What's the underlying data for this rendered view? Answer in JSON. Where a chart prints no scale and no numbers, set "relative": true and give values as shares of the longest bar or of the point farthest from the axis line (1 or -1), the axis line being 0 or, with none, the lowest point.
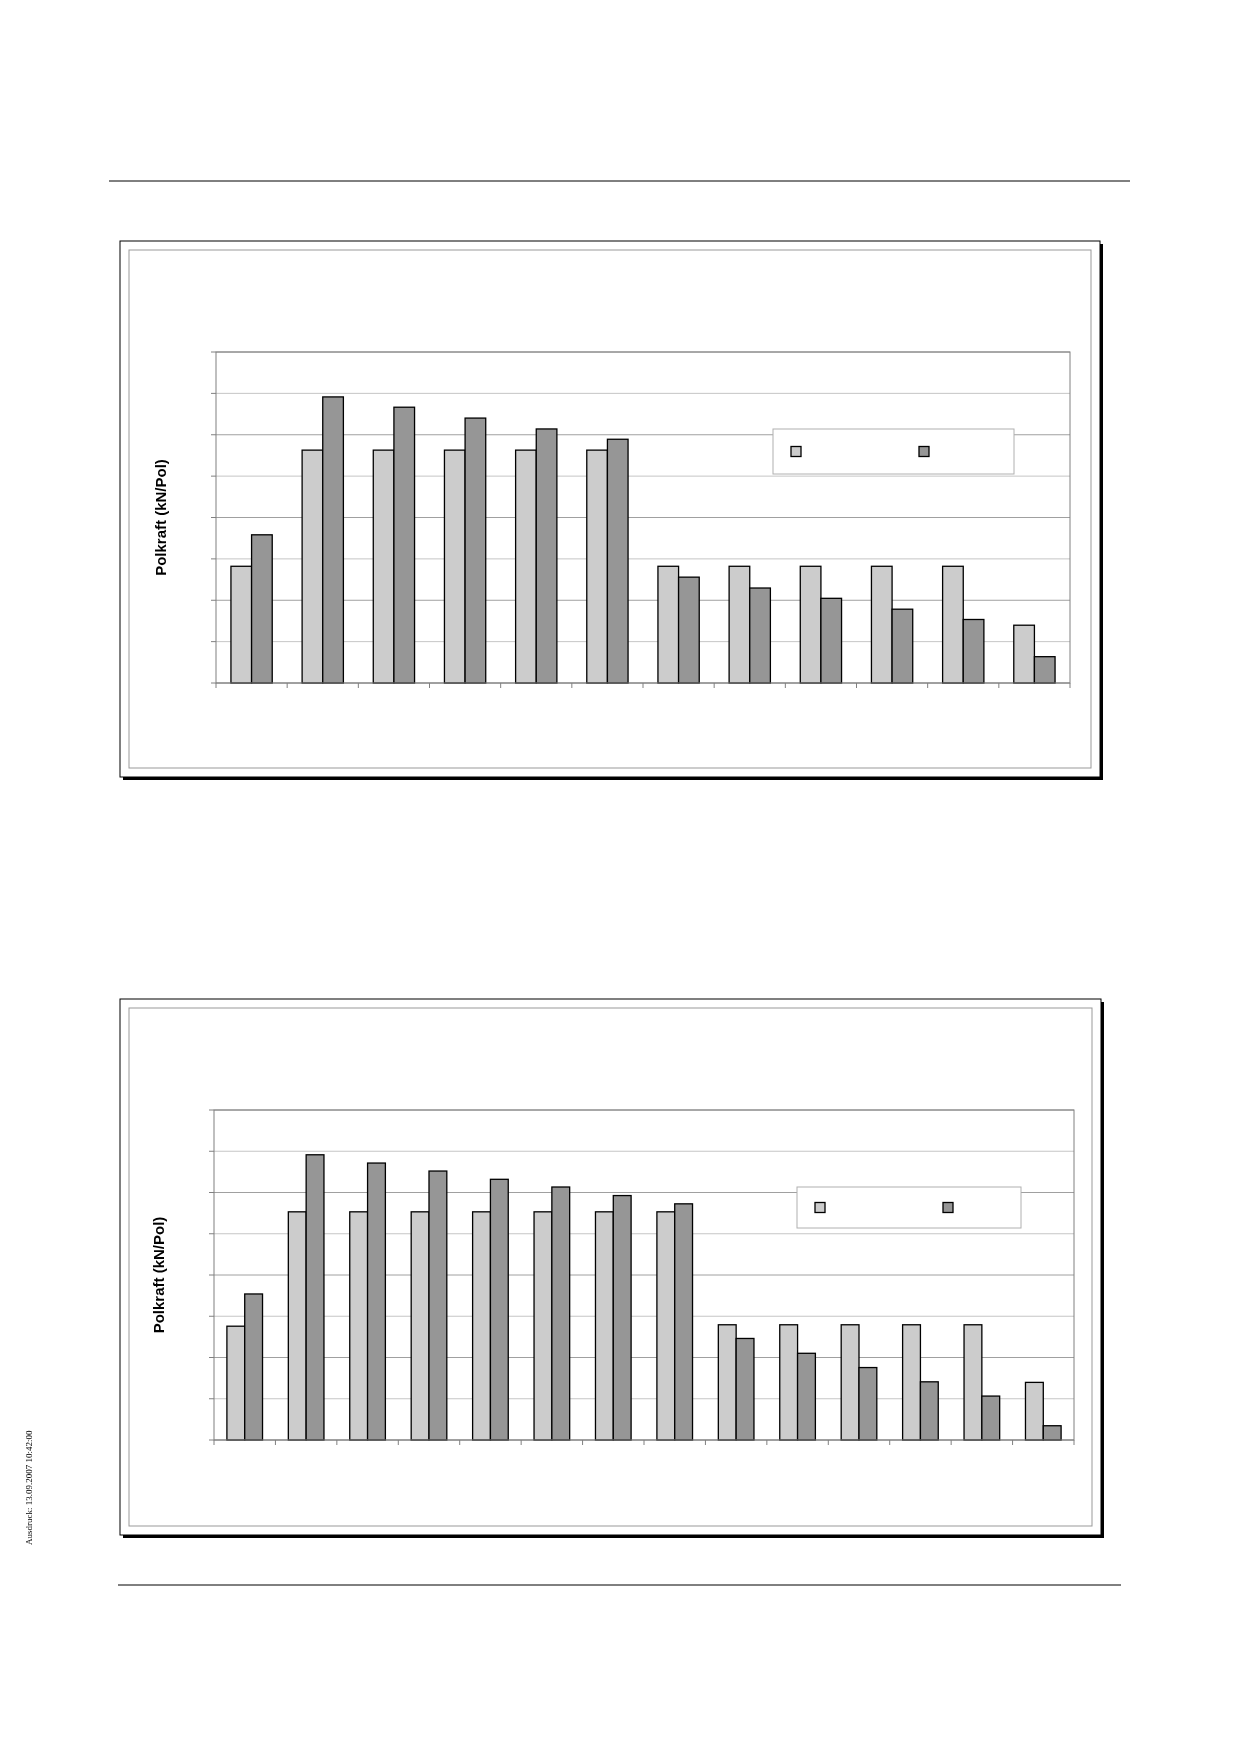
{
  "chart_data": [
    {
      "type": "bar",
      "ylabel": "Polkraft (kN/Pol)",
      "relative": true,
      "grid": "y",
      "categories": [
        null,
        null,
        null,
        null,
        null,
        null,
        null,
        null,
        null,
        null,
        null,
        null
      ],
      "series": [
        {
          "color": "#cccccc",
          "values": [
            0.408,
            0.814,
            0.814,
            0.814,
            0.814,
            0.814,
            0.408,
            0.408,
            0.408,
            0.408,
            0.408,
            0.202
          ]
        },
        {
          "color": "#969696",
          "values": [
            0.518,
            1,
            0.964,
            0.926,
            0.888,
            0.852,
            0.37,
            0.332,
            0.296,
            0.258,
            0.222,
            0.092
          ]
        }
      ]
    },
    {
      "type": "bar",
      "ylabel": "Polkraft (kN/Pol)",
      "relative": true,
      "grid": "y",
      "categories": [
        null,
        null,
        null,
        null,
        null,
        null,
        null,
        null,
        null,
        null,
        null,
        null,
        null,
        null
      ],
      "series": [
        {
          "color": "#cccccc",
          "values": [
            0.399,
            0.8,
            0.8,
            0.8,
            0.8,
            0.8,
            0.8,
            0.8,
            0.404,
            0.404,
            0.404,
            0.404,
            0.404,
            0.202
          ]
        },
        {
          "color": "#969696",
          "values": [
            0.512,
            1,
            0.971,
            0.943,
            0.914,
            0.887,
            0.857,
            0.828,
            0.356,
            0.304,
            0.254,
            0.204,
            0.154,
            0.05
          ]
        }
      ],
      "annotations": [
        "Ausdruck: 13.09.2007 10:42:00"
      ]
    }
  ]
}
